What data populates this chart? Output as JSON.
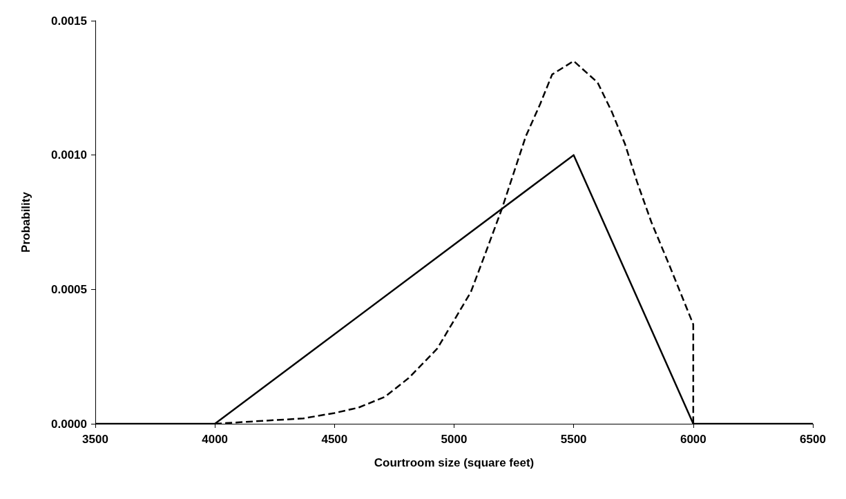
{
  "chart_data": {
    "type": "line",
    "xlabel": "Courtroom size (square feet)",
    "ylabel": "Probability",
    "xlim": [
      3500,
      6500
    ],
    "xticks": [
      3500,
      4000,
      4500,
      5000,
      5500,
      6000,
      6500
    ],
    "ylim": [
      0,
      0.0015
    ],
    "yticks": [
      {
        "value": 0,
        "label": "0.0000"
      },
      {
        "value": 0.0005,
        "label": "0.0005"
      },
      {
        "value": 0.001,
        "label": "0.0010"
      },
      {
        "value": 0.0015,
        "label": "0.0015"
      }
    ],
    "grid": false,
    "marker": "none",
    "series": [
      {
        "color": "#000000",
        "line_style": "solid",
        "x": [
          3500,
          4000,
          5500,
          6000,
          6500
        ],
        "values": [
          0,
          0,
          0.001,
          0,
          0
        ]
      },
      {
        "color": "#000000",
        "line_style": "dashed",
        "x": [
          4000,
          4370,
          4500,
          4600,
          4710,
          4810,
          4930,
          5010,
          5070,
          5125,
          5200,
          5300,
          5360,
          5410,
          5500,
          5600,
          5660,
          5715,
          5765,
          5825,
          5900,
          6000,
          6000
        ],
        "values": [
          0,
          2e-05,
          4e-05,
          6e-05,
          0.0001,
          0.00017,
          0.00028,
          0.0004,
          0.00049,
          0.00062,
          0.0008,
          0.00107,
          0.00119,
          0.0013,
          0.00135,
          0.00127,
          0.00116,
          0.00104,
          0.0009,
          0.00075,
          0.00059,
          0.00037,
          0
        ]
      }
    ]
  }
}
